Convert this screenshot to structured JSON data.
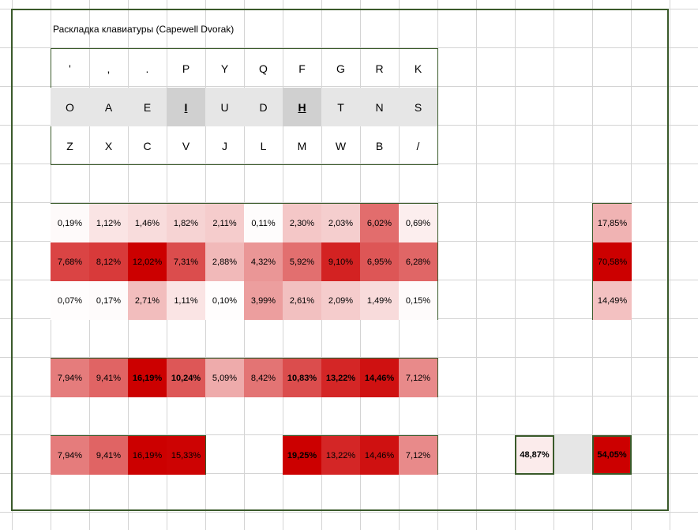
{
  "title": "Раскладка клавиатуры (Capewell Dvorak)",
  "keys": {
    "row1": [
      "'",
      ",",
      ".",
      "P",
      "Y",
      "Q",
      "F",
      "G",
      "R",
      "K"
    ],
    "row2": [
      "O",
      "A",
      "E",
      "I",
      "U",
      "D",
      "H",
      "T",
      "N",
      "S"
    ],
    "row3": [
      "Z",
      "X",
      "C",
      "V",
      "J",
      "L",
      "M",
      "W",
      "B",
      "/"
    ]
  },
  "freq": {
    "row1": [
      "0,19%",
      "1,12%",
      "1,46%",
      "1,82%",
      "2,11%",
      "0,11%",
      "2,30%",
      "2,03%",
      "6,02%",
      "0,69%"
    ],
    "row2": [
      "7,68%",
      "8,12%",
      "12,02%",
      "7,31%",
      "2,88%",
      "4,32%",
      "5,92%",
      "9,10%",
      "6,95%",
      "6,28%"
    ],
    "row3": [
      "0,07%",
      "0,17%",
      "2,71%",
      "1,11%",
      "0,10%",
      "3,99%",
      "2,61%",
      "2,09%",
      "1,49%",
      "0,15%"
    ],
    "row_totals": [
      "17,85%",
      "70,58%",
      "14,49%"
    ]
  },
  "columns": [
    "7,94%",
    "9,41%",
    "16,19%",
    "10,24%",
    "5,09%",
    "8,42%",
    "10,83%",
    "13,22%",
    "14,46%",
    "7,12%"
  ],
  "fingers": {
    "left": [
      "7,94%",
      "9,41%",
      "16,19%",
      "15,33%"
    ],
    "right": [
      "19,25%",
      "13,22%",
      "14,46%",
      "7,12%"
    ],
    "left_total": "48,87%",
    "right_total": "54,05%"
  },
  "colors": {
    "frame": "#3a5a2a",
    "grid": "#d4d4d4",
    "heat_max": "#cc0000",
    "key_grey": "#e6e6e6",
    "key_home": "#d0d0d0"
  }
}
